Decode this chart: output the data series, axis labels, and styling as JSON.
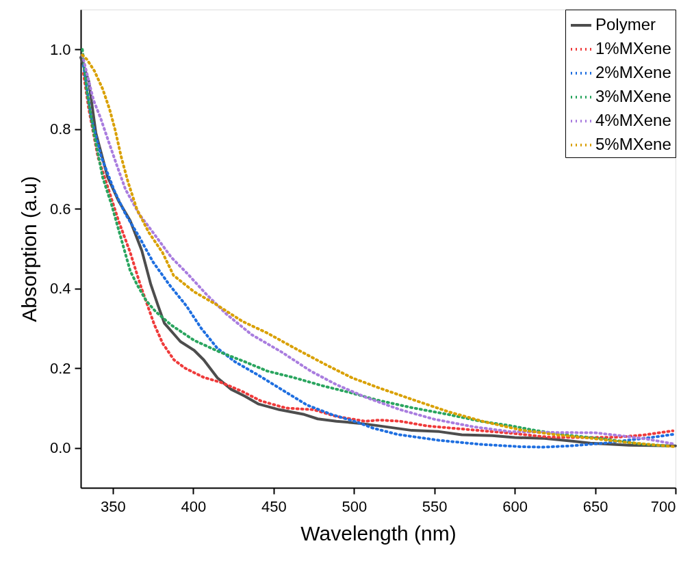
{
  "chart_data": {
    "type": "line",
    "xlabel": "Wavelength (nm)",
    "ylabel": "Absorption (a.u)",
    "xlim": [
      330,
      700
    ],
    "ylim": [
      -0.1,
      1.1
    ],
    "xticks": [
      350,
      400,
      450,
      500,
      550,
      600,
      650,
      700
    ],
    "yticks": [
      {
        "value": 0,
        "label": "0.0"
      },
      {
        "value": 0.2,
        "label": "0.2"
      },
      {
        "value": 0.4,
        "label": "0.4"
      },
      {
        "value": 0.6,
        "label": "0.6"
      },
      {
        "value": 0.8,
        "label": "0.8"
      },
      {
        "value": 1,
        "label": "1.0"
      }
    ],
    "grid": false,
    "legend": "top right",
    "marker": "none",
    "series": [
      {
        "name": "Polymer",
        "color": "#4d4d4d",
        "line_style": "solid",
        "x": [
          330,
          335,
          339.4,
          346.7,
          353.5,
          360.8,
          368,
          373.6,
          378,
          382,
          392,
          400.5,
          406.5,
          415,
          423.6,
          432,
          440.7,
          453.5,
          469,
          477.4,
          489,
          503,
          514.6,
          536,
          553,
          567,
          586,
          600,
          618.5,
          635.6,
          647,
          671,
          700
        ],
        "values": [
          0.98,
          0.92,
          0.79,
          0.68,
          0.62,
          0.57,
          0.495,
          0.41,
          0.358,
          0.313,
          0.267,
          0.245,
          0.221,
          0.176,
          0.147,
          0.13,
          0.11,
          0.096,
          0.084,
          0.073,
          0.067,
          0.062,
          0.056,
          0.044,
          0.041,
          0.033,
          0.031,
          0.026,
          0.024,
          0.017,
          0.012,
          0.007,
          0.005
        ]
      },
      {
        "name": "1%MXene",
        "color": "#ef3b3b",
        "line_style": "dotted",
        "x": [
          331.7,
          335,
          340.7,
          346.7,
          353.5,
          360.8,
          367,
          371.5,
          375.7,
          381,
          388,
          395,
          406.5,
          417.6,
          430.4,
          442,
          457.8,
          474.9,
          489,
          507,
          515.9,
          528.7,
          545.8,
          565.9,
          600,
          621.5,
          642.8,
          664,
          681.3,
          698.4
        ],
        "values": [
          0.94,
          0.85,
          0.73,
          0.656,
          0.57,
          0.49,
          0.41,
          0.358,
          0.31,
          0.262,
          0.221,
          0.2,
          0.177,
          0.164,
          0.142,
          0.118,
          0.1,
          0.096,
          0.079,
          0.067,
          0.07,
          0.067,
          0.055,
          0.048,
          0.036,
          0.027,
          0.026,
          0.027,
          0.033,
          0.043
        ]
      },
      {
        "name": "2%MXene",
        "color": "#1f6fe0",
        "line_style": "dotted",
        "x": [
          331.7,
          336.4,
          342.8,
          351,
          357.8,
          366.3,
          374.9,
          385,
          395.8,
          404.8,
          415,
          426,
          440.7,
          454.8,
          470.6,
          486,
          501.8,
          511.6,
          527,
          553,
          578.7,
          604,
          617,
          634,
          655.6,
          675.7,
          690,
          698.4
        ],
        "values": [
          0.96,
          0.83,
          0.73,
          0.644,
          0.587,
          0.53,
          0.467,
          0.41,
          0.356,
          0.301,
          0.25,
          0.216,
          0.182,
          0.147,
          0.108,
          0.084,
          0.065,
          0.05,
          0.034,
          0.019,
          0.009,
          0.003,
          0.002,
          0.005,
          0.012,
          0.022,
          0.029,
          0.034
        ]
      },
      {
        "name": "3%MXene",
        "color": "#2aa55f",
        "line_style": "dotted",
        "x": [
          331,
          333.8,
          338,
          343.7,
          349.2,
          355.2,
          360.8,
          365,
          370.6,
          376.6,
          386.4,
          400.5,
          416.3,
          430.4,
          446,
          463,
          480.4,
          497.5,
          514.6,
          536,
          558.6,
          578.7,
          597,
          614,
          635.6,
          657,
          678,
          695
        ],
        "values": [
          1.0,
          0.895,
          0.793,
          0.678,
          0.61,
          0.524,
          0.444,
          0.41,
          0.37,
          0.342,
          0.308,
          0.27,
          0.241,
          0.219,
          0.193,
          0.176,
          0.156,
          0.139,
          0.12,
          0.101,
          0.084,
          0.067,
          0.056,
          0.043,
          0.031,
          0.022,
          0.01,
          0.005
        ]
      },
      {
        "name": "4%MXene",
        "color": "#a97ddf",
        "line_style": "dotted",
        "x": [
          331,
          333.8,
          338,
          342.4,
          346.7,
          352.2,
          357.8,
          366.3,
          374.9,
          386.4,
          396.2,
          407.8,
          420.6,
          436.4,
          454.8,
          473,
          489,
          507.3,
          528.7,
          550,
          574.4,
          597,
          621.5,
          650,
          665.5,
          682.6,
          699
        ],
        "values": [
          0.986,
          0.94,
          0.872,
          0.827,
          0.776,
          0.712,
          0.649,
          0.587,
          0.541,
          0.478,
          0.438,
          0.387,
          0.336,
          0.284,
          0.241,
          0.193,
          0.159,
          0.127,
          0.096,
          0.072,
          0.053,
          0.041,
          0.039,
          0.038,
          0.031,
          0.022,
          0.01
        ]
      },
      {
        "name": "5%MXene",
        "color": "#d9a000",
        "line_style": "dotted",
        "x": [
          331,
          333.8,
          338.5,
          343.7,
          348,
          351.4,
          355.2,
          359.5,
          365,
          372.3,
          380.9,
          387.7,
          400.5,
          415,
          430.4,
          446.2,
          464.6,
          483.4,
          498.8,
          514.6,
          536,
          558.6,
          581.7,
          604,
          625.7,
          648,
          669.7,
          699.6
        ],
        "values": [
          0.986,
          0.975,
          0.946,
          0.9,
          0.849,
          0.798,
          0.73,
          0.666,
          0.598,
          0.541,
          0.49,
          0.433,
          0.392,
          0.358,
          0.318,
          0.288,
          0.247,
          0.207,
          0.176,
          0.152,
          0.122,
          0.091,
          0.065,
          0.045,
          0.033,
          0.024,
          0.014,
          0.003
        ]
      }
    ]
  }
}
